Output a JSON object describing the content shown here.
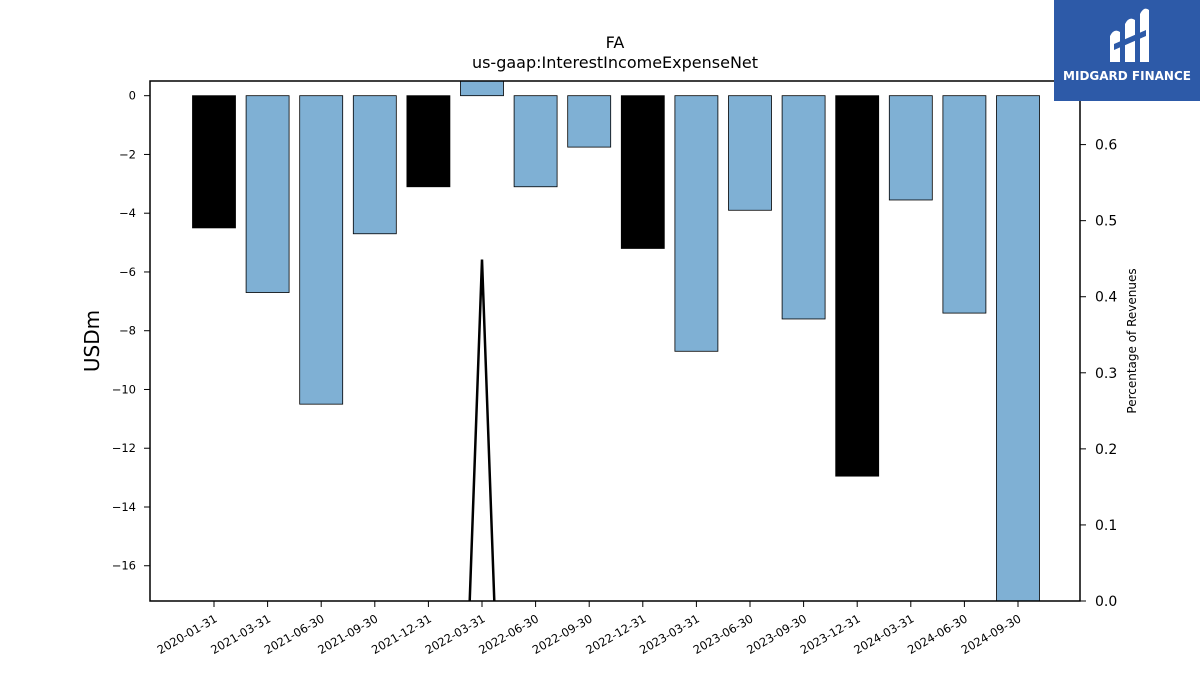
{
  "chart_data": {
    "type": "bar",
    "title": "FA",
    "subtitle": "us-gaap:InterestIncomeExpenseNet",
    "ylabel": "USDm",
    "y2label": "Percentage of Revenues",
    "categories": [
      "2020-01-31",
      "2021-03-31",
      "2021-06-30",
      "2021-09-30",
      "2021-12-31",
      "2022-03-31",
      "2022-06-30",
      "2022-09-30",
      "2022-12-31",
      "2023-03-31",
      "2023-06-30",
      "2023-09-30",
      "2023-12-31",
      "2024-03-31",
      "2024-06-30",
      "2024-09-30"
    ],
    "values": [
      -4.5,
      -6.7,
      -10.5,
      -4.7,
      -3.1,
      0.5,
      -3.1,
      -1.75,
      -5.2,
      -8.7,
      -3.9,
      -7.6,
      -12.95,
      -3.55,
      -7.4,
      -17.2
    ],
    "bar_colors": [
      "#000000",
      "#7fb0d4",
      "#7fb0d4",
      "#7fb0d4",
      "#000000",
      "#7fb0d4",
      "#7fb0d4",
      "#7fb0d4",
      "#000000",
      "#7fb0d4",
      "#7fb0d4",
      "#7fb0d4",
      "#000000",
      "#7fb0d4",
      "#7fb0d4",
      "#7fb0d4"
    ],
    "ylim": [
      -17.2,
      0.5
    ],
    "yticks": [
      0,
      -2,
      -4,
      -6,
      -8,
      -10,
      -12,
      -14,
      -16
    ],
    "y2lim": [
      0,
      0.6836
    ],
    "y2ticks": [
      0.0,
      0.1,
      0.2,
      0.3,
      0.4,
      0.5,
      0.6
    ],
    "line": {
      "x_index": [
        4.77,
        5.0,
        5.23
      ],
      "values": [
        0.0,
        0.449,
        0.0
      ],
      "color": "#000000"
    },
    "grid": false
  },
  "logo": {
    "text": "MIDGARD FINANCE",
    "background": "#2d5aa8"
  }
}
